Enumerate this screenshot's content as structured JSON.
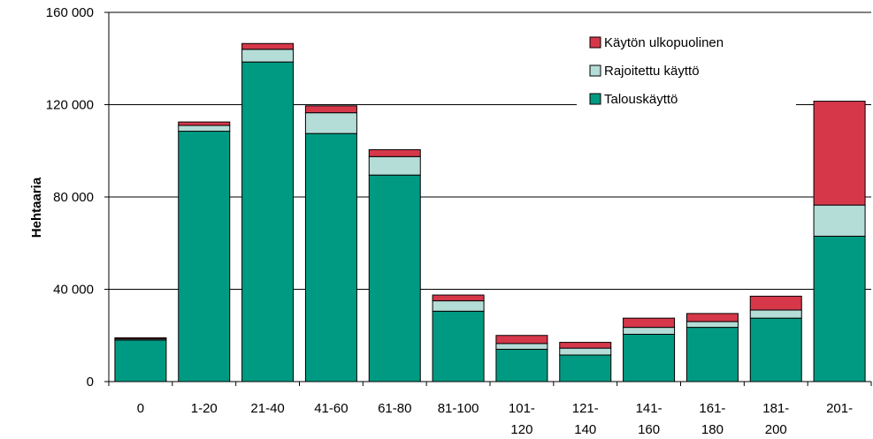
{
  "chart_data": {
    "type": "bar",
    "stacked": true,
    "title": "",
    "xlabel": "",
    "ylabel": "Hehtaaria",
    "ylim": [
      0,
      160000
    ],
    "yticks": [
      0,
      40000,
      80000,
      120000,
      160000
    ],
    "ytick_labels": [
      "0",
      "40 000",
      "80 000",
      "120 000",
      "160 000"
    ],
    "grid": true,
    "legend_position": "top-right",
    "categories": [
      [
        "0"
      ],
      [
        "1-20"
      ],
      [
        "21-40"
      ],
      [
        "41-60"
      ],
      [
        "61-80"
      ],
      [
        "81-100"
      ],
      [
        "101-",
        "120"
      ],
      [
        "121-",
        "140"
      ],
      [
        "141-",
        "160"
      ],
      [
        "161-",
        "180"
      ],
      [
        "181-",
        "200"
      ],
      [
        "201-"
      ]
    ],
    "series": [
      {
        "name": "Talouskäyttö",
        "color": "#009a82",
        "values": [
          18000,
          108500,
          138500,
          107500,
          89500,
          30500,
          14000,
          11500,
          20500,
          23500,
          27500,
          63000
        ]
      },
      {
        "name": "Rajoitettu käyttö",
        "color": "#b5ddd8",
        "values": [
          500,
          2500,
          5500,
          9000,
          8000,
          4500,
          2500,
          3000,
          3000,
          2500,
          3500,
          13500
        ]
      },
      {
        "name": "Käytön ulkopuolinen",
        "color": "#d6384a",
        "values": [
          500,
          1500,
          2500,
          3000,
          3000,
          2500,
          3500,
          2500,
          4000,
          3500,
          6000,
          45000
        ]
      }
    ]
  }
}
